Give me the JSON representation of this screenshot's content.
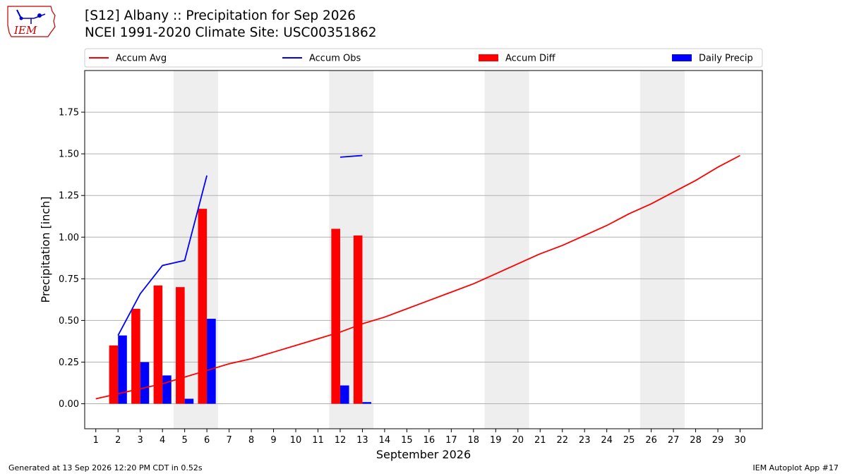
{
  "header": {
    "title": "[S12] Albany :: Precipitation for Sep 2026",
    "subtitle": "NCEI 1991-2020 Climate Site: USC00351862",
    "logo_text": "IEM"
  },
  "footer": {
    "left": "Generated at 13 Sep 2026 12:20 PM CDT in 0.52s",
    "right": "IEM Autoplot App #17"
  },
  "colors": {
    "accum_avg": "#ff0000",
    "accum_obs": "#0000ff",
    "accum_diff": "#ff0000",
    "daily_precip": "#0000ff",
    "weekend_shade": "#eeeeee",
    "grid": "#b0b0b0"
  },
  "chart_data": {
    "type": "bar",
    "xlabel": "September 2026",
    "ylabel": "Precipitation [inch]",
    "xlim": [
      0.5,
      31
    ],
    "ylim": [
      -0.15,
      2.0
    ],
    "yticks": [
      0.0,
      0.25,
      0.5,
      0.75,
      1.0,
      1.25,
      1.5,
      1.75
    ],
    "ytick_labels": [
      "0.00",
      "0.25",
      "0.50",
      "0.75",
      "1.00",
      "1.25",
      "1.50",
      "1.75"
    ],
    "x": [
      1,
      2,
      3,
      4,
      5,
      6,
      7,
      8,
      9,
      10,
      11,
      12,
      13,
      14,
      15,
      16,
      17,
      18,
      19,
      20,
      21,
      22,
      23,
      24,
      25,
      26,
      27,
      28,
      29,
      30
    ],
    "xtick_labels": [
      "1",
      "2",
      "3",
      "4",
      "5",
      "6",
      "7",
      "8",
      "9",
      "10",
      "11",
      "12",
      "13",
      "14",
      "15",
      "16",
      "17",
      "18",
      "19",
      "20",
      "21",
      "22",
      "23",
      "24",
      "25",
      "26",
      "27",
      "28",
      "29",
      "30"
    ],
    "grid": "horizontal",
    "legend_position": "top",
    "legend": [
      "Accum Avg",
      "Accum Obs",
      "Accum Diff",
      "Daily Precip"
    ],
    "weekends": [
      [
        5,
        6
      ],
      [
        12,
        13
      ],
      [
        19,
        20
      ],
      [
        26,
        27
      ]
    ],
    "series": [
      {
        "name": "Accum Avg",
        "kind": "line",
        "x": [
          1,
          2,
          3,
          4,
          5,
          6,
          7,
          8,
          9,
          10,
          11,
          12,
          13,
          14,
          15,
          16,
          17,
          18,
          19,
          20,
          21,
          22,
          23,
          24,
          25,
          26,
          27,
          28,
          29,
          30
        ],
        "values": [
          0.03,
          0.06,
          0.09,
          0.12,
          0.16,
          0.2,
          0.24,
          0.27,
          0.31,
          0.35,
          0.39,
          0.43,
          0.48,
          0.52,
          0.57,
          0.62,
          0.67,
          0.72,
          0.78,
          0.84,
          0.9,
          0.95,
          1.01,
          1.07,
          1.14,
          1.2,
          1.27,
          1.34,
          1.42,
          1.49
        ]
      },
      {
        "name": "Accum Obs",
        "kind": "line",
        "segments": [
          {
            "x": [
              2,
              3,
              4,
              5,
              6
            ],
            "values": [
              0.41,
              0.66,
              0.83,
              0.86,
              1.37
            ]
          },
          {
            "x": [
              12,
              13
            ],
            "values": [
              1.48,
              1.49
            ]
          }
        ]
      },
      {
        "name": "Accum Diff",
        "kind": "bar",
        "x": [
          2,
          3,
          4,
          5,
          6,
          12,
          13
        ],
        "values": [
          0.35,
          0.57,
          0.71,
          0.7,
          1.17,
          1.05,
          1.01
        ]
      },
      {
        "name": "Daily Precip",
        "kind": "bar",
        "x": [
          2,
          3,
          4,
          5,
          6,
          12,
          13
        ],
        "values": [
          0.41,
          0.25,
          0.17,
          0.03,
          0.51,
          0.11,
          0.01
        ]
      }
    ]
  }
}
